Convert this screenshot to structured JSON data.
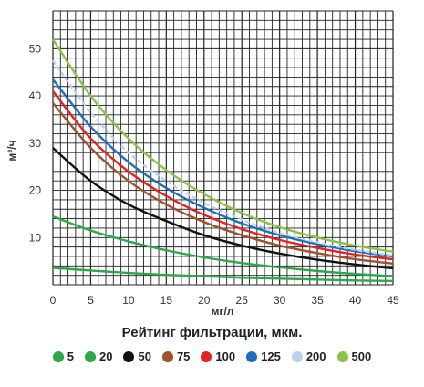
{
  "chart_data": {
    "type": "line",
    "ylabel": "м³/ч",
    "xlabel": "мг/л",
    "xlim": [
      0,
      45
    ],
    "ylim": [
      0,
      58
    ],
    "x_ticks": [
      "0",
      "5",
      "10",
      "15",
      "20",
      "25",
      "30",
      "35",
      "40",
      "45"
    ],
    "y_ticks": [
      "10",
      "20",
      "30",
      "40",
      "50"
    ],
    "grid": true,
    "legend_title": "Рейтинг фильтрации, мкм.",
    "legend_position": "bottom",
    "series": [
      {
        "name": "5",
        "color": "#2aa84a",
        "dashed": false,
        "x": [
          0,
          5,
          10,
          15,
          20,
          25,
          30,
          35,
          40,
          45
        ],
        "y": [
          3.6,
          3.0,
          2.5,
          2.1,
          1.8,
          1.5,
          1.3,
          1.1,
          0.9,
          0.8
        ]
      },
      {
        "name": "20",
        "color": "#2aa84a",
        "dashed": false,
        "x": [
          0,
          5,
          10,
          15,
          20,
          25,
          30,
          35,
          40,
          45
        ],
        "y": [
          14.5,
          11.5,
          9.2,
          7.3,
          5.8,
          4.6,
          3.7,
          2.9,
          2.3,
          1.8
        ]
      },
      {
        "name": "50",
        "color": "#111111",
        "dashed": false,
        "x": [
          0,
          5,
          10,
          15,
          20,
          25,
          30,
          35,
          40,
          45
        ],
        "y": [
          29.0,
          22.0,
          17.0,
          13.5,
          10.5,
          8.3,
          6.6,
          5.3,
          4.3,
          3.5
        ]
      },
      {
        "name": "75",
        "color": "#a0522d",
        "dashed": false,
        "x": [
          0,
          5,
          10,
          15,
          20,
          25,
          30,
          35,
          40,
          45
        ],
        "y": [
          38.5,
          29.0,
          22.0,
          17.0,
          13.3,
          10.5,
          8.3,
          6.7,
          5.4,
          4.5
        ]
      },
      {
        "name": "100",
        "color": "#e02424",
        "dashed": false,
        "x": [
          0,
          5,
          10,
          15,
          20,
          25,
          30,
          35,
          40,
          45
        ],
        "y": [
          41.0,
          31.0,
          24.0,
          18.8,
          14.8,
          11.8,
          9.5,
          7.8,
          6.4,
          5.4
        ]
      },
      {
        "name": "125",
        "color": "#1f6fb8",
        "dashed": false,
        "x": [
          0,
          5,
          10,
          15,
          20,
          25,
          30,
          35,
          40,
          45
        ],
        "y": [
          43.5,
          33.5,
          26.0,
          20.5,
          16.3,
          13.0,
          10.5,
          8.6,
          7.1,
          6.0
        ]
      },
      {
        "name": "200",
        "color": "#b9d4ea",
        "dashed": true,
        "x": [
          0,
          5,
          10,
          15,
          20,
          25,
          30,
          35,
          40,
          45
        ],
        "y": [
          47.5,
          36.5,
          28.0,
          22.0,
          17.3,
          13.8,
          11.0,
          9.0,
          7.4,
          6.2
        ]
      },
      {
        "name": "500",
        "color": "#8bc34a",
        "dashed": false,
        "x": [
          0,
          5,
          10,
          15,
          20,
          25,
          30,
          35,
          40,
          45
        ],
        "y": [
          52.0,
          40.0,
          31.0,
          24.3,
          19.2,
          15.2,
          12.2,
          10.0,
          8.3,
          7.0
        ]
      }
    ]
  }
}
